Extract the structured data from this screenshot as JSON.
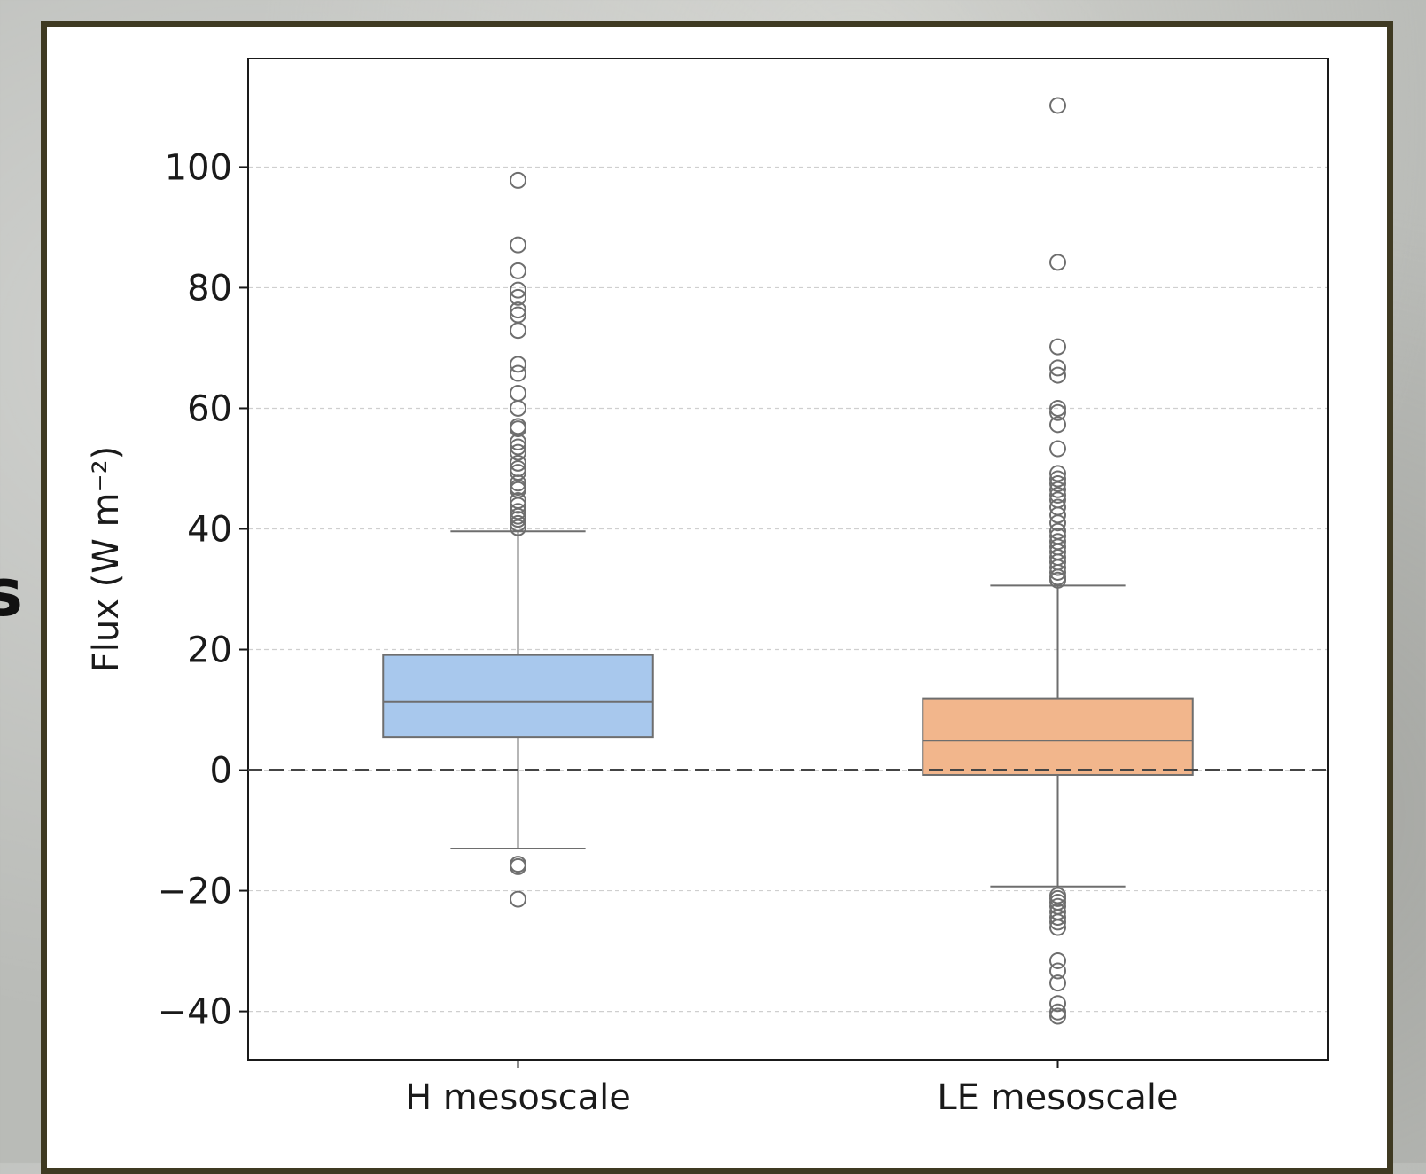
{
  "background": {
    "glyph": "s"
  },
  "chart_data": {
    "type": "box",
    "title": "",
    "xlabel": "",
    "ylabel": "Flux (W m⁻²)",
    "ylim": [
      -48,
      118
    ],
    "yticks": [
      -40,
      -20,
      0,
      20,
      40,
      60,
      80,
      100
    ],
    "ytick_labels": [
      "−40",
      "−20",
      "0",
      "20",
      "40",
      "60",
      "80",
      "100"
    ],
    "categories": [
      "H mesoscale",
      "LE mesoscale"
    ],
    "grid": "horizontal-dashed",
    "reference_line": {
      "y": 0,
      "style": "dashed"
    },
    "series": [
      {
        "category": "H mesoscale",
        "color": "#a8c8ed",
        "whisker_low": -13,
        "q1": 5.5,
        "median": 11.3,
        "q3": 19.1,
        "whisker_high": 39.6,
        "outliers": [
          97.8,
          87.1,
          82.8,
          79.6,
          78.4,
          76.3,
          75.5,
          72.9,
          67.3,
          65.8,
          62.5,
          60.0,
          57.0,
          56.6,
          54.4,
          53.6,
          52.7,
          50.9,
          50.0,
          49.4,
          47.6,
          46.9,
          46.5,
          44.7,
          43.9,
          42.9,
          42.1,
          41.6,
          40.9,
          40.2,
          -15.6,
          -16.0,
          -21.4
        ]
      },
      {
        "category": "LE mesoscale",
        "color": "#f2b68c",
        "whisker_low": -19.3,
        "q1": -0.8,
        "median": 4.9,
        "q3": 11.9,
        "whisker_high": 30.6,
        "outliers": [
          110.2,
          84.2,
          70.2,
          66.7,
          65.5,
          60.0,
          59.3,
          57.3,
          53.3,
          49.2,
          48.3,
          47.5,
          46.5,
          45.6,
          44.8,
          43.6,
          42.3,
          41.0,
          39.6,
          38.8,
          37.9,
          37.0,
          36.2,
          35.3,
          34.5,
          33.6,
          32.8,
          32.0,
          31.5,
          -20.8,
          -21.3,
          -21.9,
          -22.6,
          -23.5,
          -24.4,
          -25.2,
          -26.1,
          -31.6,
          -33.3,
          -35.3,
          -38.7,
          -40.1,
          -40.8
        ]
      }
    ]
  }
}
